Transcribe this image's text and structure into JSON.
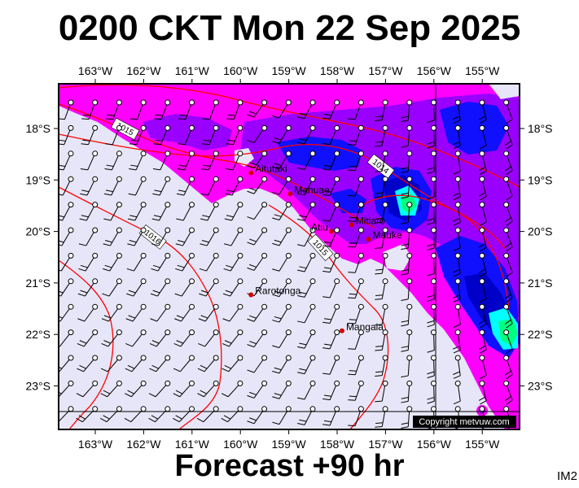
{
  "title": "0200 CKT Mon 22 Sep 2025",
  "forecast_label": "Forecast +90 hr",
  "model_tag": "IM2",
  "copyright": "Copyright metvuw.com",
  "lon_labels": [
    "163°W",
    "162°W",
    "161°W",
    "160°W",
    "159°W",
    "158°W",
    "157°W",
    "156°W",
    "155°W"
  ],
  "lat_labels": [
    "18°S",
    "19°S",
    "20°S",
    "21°S",
    "22°S",
    "23°S"
  ],
  "places": [
    {
      "name": "Aitutaki",
      "lon": -159.78,
      "lat": -18.86
    },
    {
      "name": "Mauke",
      "lon": -157.35,
      "lat": -20.15
    },
    {
      "name": "Mitiaro",
      "lon": -157.7,
      "lat": -19.87
    },
    {
      "name": "Atiu",
      "lon": -158.12,
      "lat": -20.0
    },
    {
      "name": "Mangaia",
      "lon": -157.9,
      "lat": -21.93
    },
    {
      "name": "Rarotonga",
      "lon": -159.78,
      "lat": -21.23
    },
    {
      "name": "Manuae",
      "lon": -158.97,
      "lat": -19.27
    }
  ],
  "isobars": [
    "1015",
    "1014",
    "1015",
    "1016"
  ],
  "colors": {
    "land_fill": "#e6e6f8",
    "magenta": "#ff00ff",
    "violet": "#9a00ff",
    "blue": "#1010ff",
    "navy": "#0000c8",
    "cyan": "#00ffff",
    "green": "#00ff80",
    "isobar": "#ff0000",
    "place_dot": "#d00000"
  }
}
